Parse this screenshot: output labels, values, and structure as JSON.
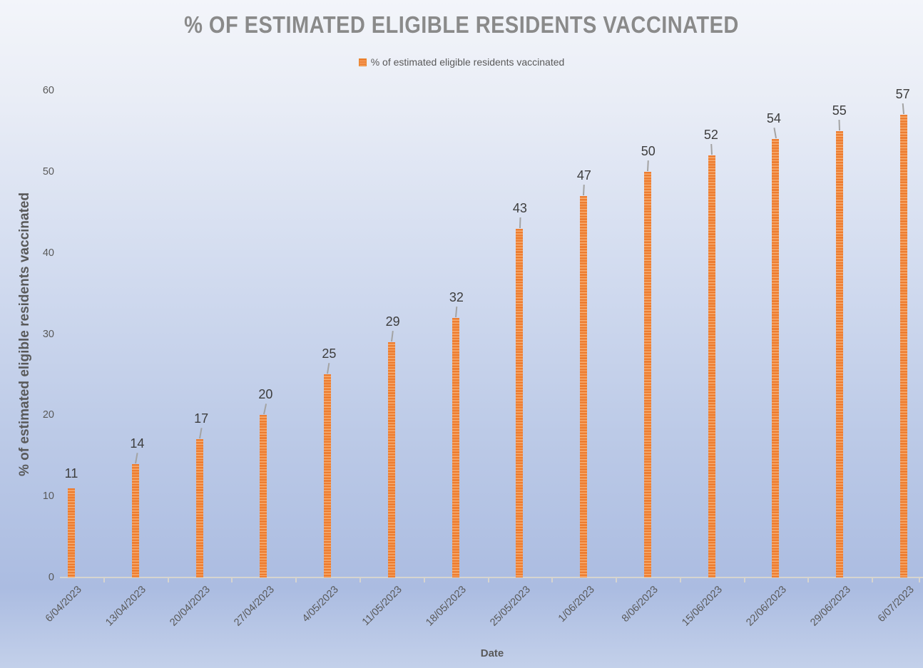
{
  "title": "% OF ESTIMATED ELIGIBLE RESIDENTS VACCINATED",
  "legend": {
    "label": "% of estimated eligible residents vaccinated"
  },
  "x_axis": {
    "title": "Date"
  },
  "y_axis": {
    "title": "% of estimated eligible residents vaccinated"
  },
  "colors": {
    "bar": "#ED7D31",
    "bar_stripe": "#F8AE72",
    "leader_line": "#A3A3A3",
    "axis_line": "#D6D4CF",
    "title_text": "#8A8A8A",
    "axis_text": "#595959",
    "data_label_text": "#3D3D3D"
  },
  "chart_data": {
    "type": "bar",
    "title": "% OF ESTIMATED ELIGIBLE RESIDENTS VACCINATED",
    "categories": [
      "6/04/2023",
      "13/04/2023",
      "20/04/2023",
      "27/04/2023",
      "4/05/2023",
      "11/05/2023",
      "18/05/2023",
      "25/05/2023",
      "1/06/2023",
      "8/06/2023",
      "15/06/2023",
      "22/06/2023",
      "29/06/2023",
      "6/07/2023"
    ],
    "values": [
      11,
      14,
      17,
      20,
      25,
      29,
      32,
      43,
      47,
      50,
      52,
      54,
      55,
      57
    ],
    "series": [
      {
        "name": "% of estimated eligible residents vaccinated",
        "values": [
          11,
          14,
          17,
          20,
          25,
          29,
          32,
          43,
          47,
          50,
          52,
          54,
          55,
          57
        ]
      }
    ],
    "xlabel": "Date",
    "ylabel": "% of estimated eligible residents vaccinated",
    "ylim": [
      0,
      60
    ],
    "yticks": [
      0,
      10,
      20,
      30,
      40,
      50,
      60
    ],
    "grid": false,
    "legend_position": "top-center",
    "data_labels": true,
    "bar_style": "thin-striped-orange"
  }
}
